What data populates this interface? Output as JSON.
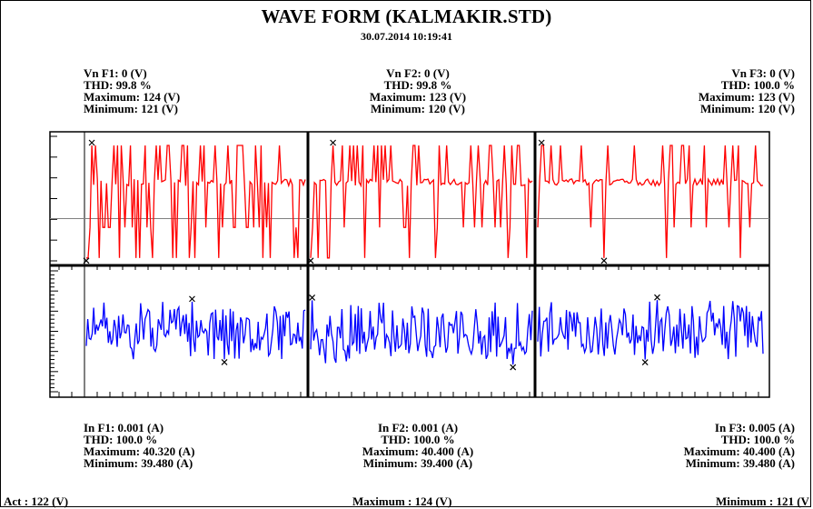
{
  "header": {
    "title": "WAVE FORM (KALMAKIR.STD)",
    "datetime": "30.07.2014 10:19:41"
  },
  "voltage_info": [
    {
      "name": "Vn F1: 0 (V)",
      "thd": "THD: 99.8 %",
      "max": "Maximum: 124 (V)",
      "min": "Minimum: 121 (V)"
    },
    {
      "name": "Vn F2: 0 (V)",
      "thd": "THD: 99.8 %",
      "max": "Maximum: 123 (V)",
      "min": "Minimum: 120 (V)"
    },
    {
      "name": "Vn F3: 0 (V)",
      "thd": "THD: 100.0 %",
      "max": "Maximum: 123 (V)",
      "min": "Minimum: 120 (V)"
    }
  ],
  "current_info": [
    {
      "name": "In F1: 0.001 (A)",
      "thd": "THD: 100.0 %",
      "max": "Maximum: 40.320 (A)",
      "min": "Minimum: 39.480 (A)"
    },
    {
      "name": "In F2: 0.001 (A)",
      "thd": "THD: 100.0 %",
      "max": "Maximum: 40.400 (A)",
      "min": "Minimum: 39.400 (A)"
    },
    {
      "name": "In F3: 0.005 (A)",
      "thd": "THD: 100.0 %",
      "max": "Maximum: 40.400 (A)",
      "min": "Minimum: 39.480 (A)"
    }
  ],
  "footer": {
    "act": "Act : 122 (V)",
    "maximum": "Maximum : 124 (V)",
    "minimum": "Minimum : 121 (V"
  },
  "colors": {
    "voltage": "#ff0000",
    "current": "#0000ff",
    "axis": "#000000",
    "zero_line": "#808080"
  },
  "chart_data": {
    "type": "line",
    "panels": [
      {
        "name": "Vn F1",
        "group": "voltage",
        "samples": 120,
        "high_level": 0.42,
        "low_level": -0.42,
        "drop_probability": 0.3,
        "seed": 11
      },
      {
        "name": "Vn F2",
        "group": "voltage",
        "samples": 120,
        "high_level": 0.42,
        "low_level": -0.42,
        "drop_probability": 0.22,
        "seed": 23
      },
      {
        "name": "Vn F3",
        "group": "voltage",
        "samples": 120,
        "high_level": 0.42,
        "low_level": -0.42,
        "drop_probability": 0.1,
        "seed": 37
      },
      {
        "name": "In F1",
        "group": "current",
        "samples": 150,
        "center": 0.0,
        "amplitude": 0.55,
        "seed": 51
      },
      {
        "name": "In F2",
        "group": "current",
        "samples": 150,
        "center": -0.02,
        "amplitude": 0.62,
        "seed": 63
      },
      {
        "name": "In F3",
        "group": "current",
        "samples": 150,
        "center": 0.03,
        "amplitude": 0.58,
        "seed": 79
      }
    ]
  }
}
